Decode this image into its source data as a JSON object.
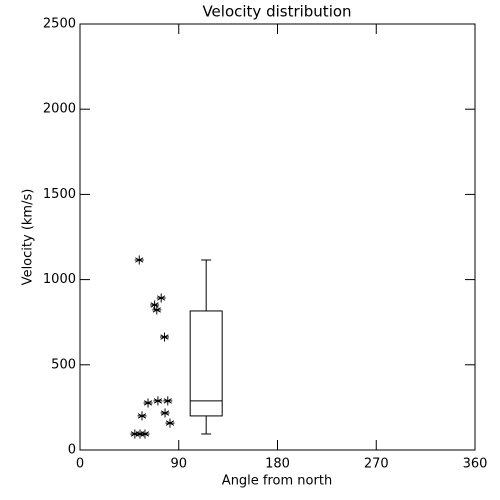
{
  "chart_data": {
    "type": "scatter",
    "title": "Velocity distribution",
    "x_label": "Angle from north",
    "y_label": "Velocity (km/s)",
    "x": [
      54,
      68,
      70,
      74,
      77,
      62,
      71,
      80,
      77.5,
      56.5,
      82,
      50,
      54.7,
      59.2
    ],
    "y": [
      1115,
      851,
      822,
      892,
      663,
      276,
      288,
      288,
      217,
      200,
      158,
      94,
      94,
      94
    ],
    "color": "#000000",
    "box": {
      "x": 115,
      "whisker_low": 94,
      "q1": 200,
      "median": 288,
      "q3": 816,
      "whisker_high": 1115
    },
    "xlim": [
      0,
      360
    ],
    "xticks": [
      0,
      90,
      180,
      270,
      360
    ],
    "ylim": [
      0,
      2500
    ],
    "yticks": [
      0,
      500,
      1000,
      1500,
      2000,
      2500
    ]
  }
}
